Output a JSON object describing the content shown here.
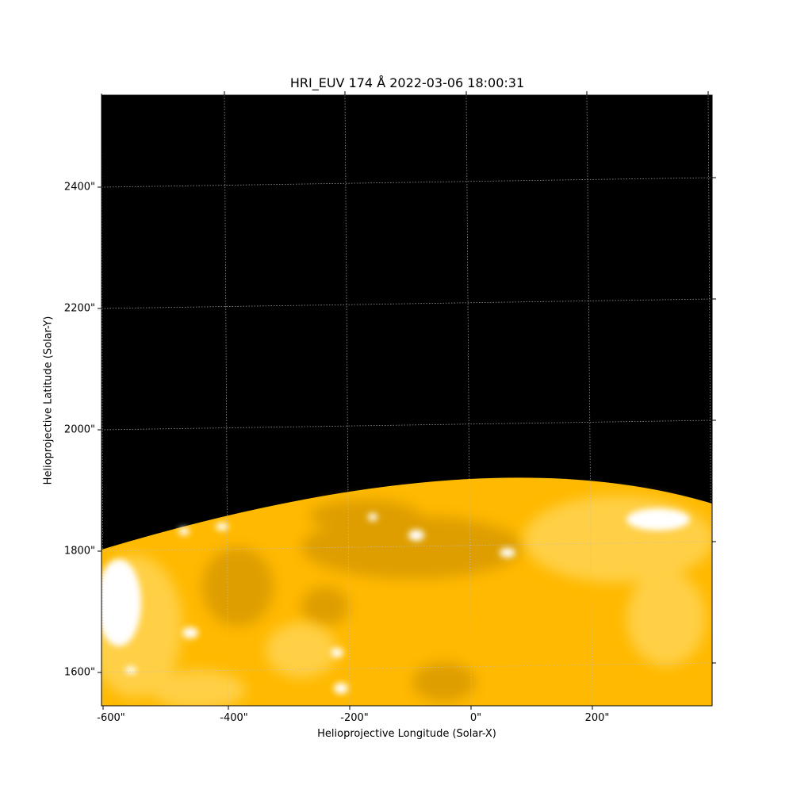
{
  "figure": {
    "title": "HRI_EUV 174 Å 2022-03-06 18:00:31",
    "xlabel": "Helioprojective Longitude (Solar-X)",
    "ylabel": "Helioprojective Latitude (Solar-Y)",
    "xticks": [
      "-600\"",
      "-400\"",
      "-200\"",
      "0\"",
      "200\""
    ],
    "yticks": [
      "2400\"",
      "2200\"",
      "2000\"",
      "1800\"",
      "1600\""
    ]
  },
  "colors": {
    "background": "#000000",
    "sun_base": "#ffb900",
    "sun_dark": "#d99a00",
    "sun_light": "#ffd24d",
    "sun_bright": "#ffffff",
    "grid": "#bfbfbf"
  }
}
